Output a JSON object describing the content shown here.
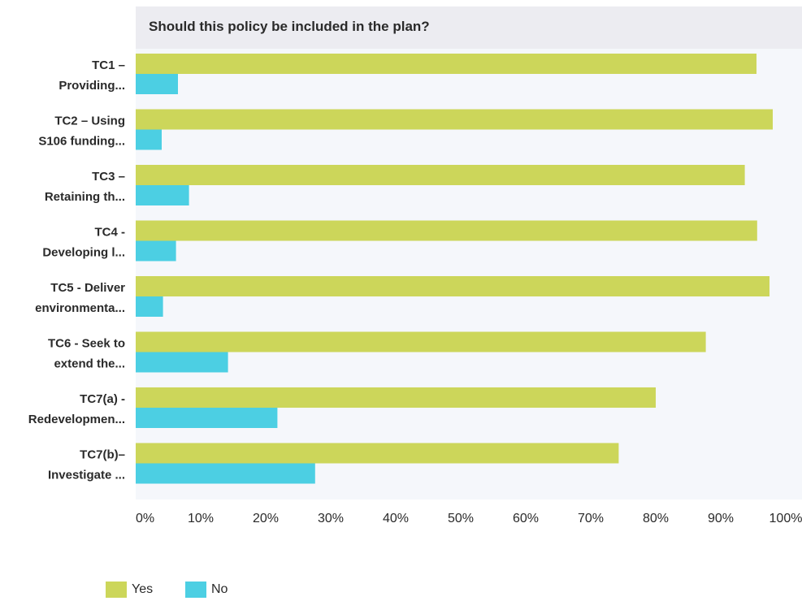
{
  "chart_data": {
    "type": "bar",
    "orientation": "horizontal",
    "title": "Should this policy be included in the plan?",
    "categories": [
      [
        "TC1 –",
        "Providing..."
      ],
      [
        "TC2 – Using",
        "S106 funding..."
      ],
      [
        "TC3 –",
        "Retaining th..."
      ],
      [
        "TC4 -",
        "Developing l..."
      ],
      [
        "TC5 - Deliver",
        "environmenta..."
      ],
      [
        "TC6 - Seek to",
        "extend the..."
      ],
      [
        "TC7(a) -",
        "Redevelopmen..."
      ],
      [
        "TC7(b)–",
        "Investigate ..."
      ]
    ],
    "series": [
      {
        "name": "Yes",
        "color": "#ccd65a",
        "values": [
          95.5,
          98,
          93.7,
          95.6,
          97.5,
          87.7,
          80,
          74.3
        ]
      },
      {
        "name": "No",
        "color": "#4ccfe3",
        "values": [
          6.5,
          4,
          8.2,
          6.2,
          4.2,
          14.2,
          21.8,
          27.6
        ]
      }
    ],
    "xlim": [
      0,
      100
    ],
    "x_ticks": [
      "0%",
      "10%",
      "20%",
      "30%",
      "40%",
      "50%",
      "60%",
      "70%",
      "80%",
      "90%",
      "100%"
    ],
    "grid": false,
    "legend_position": "bottom-left",
    "plot_background": "#f5f7fb",
    "title_band_color": "#ececf1"
  }
}
